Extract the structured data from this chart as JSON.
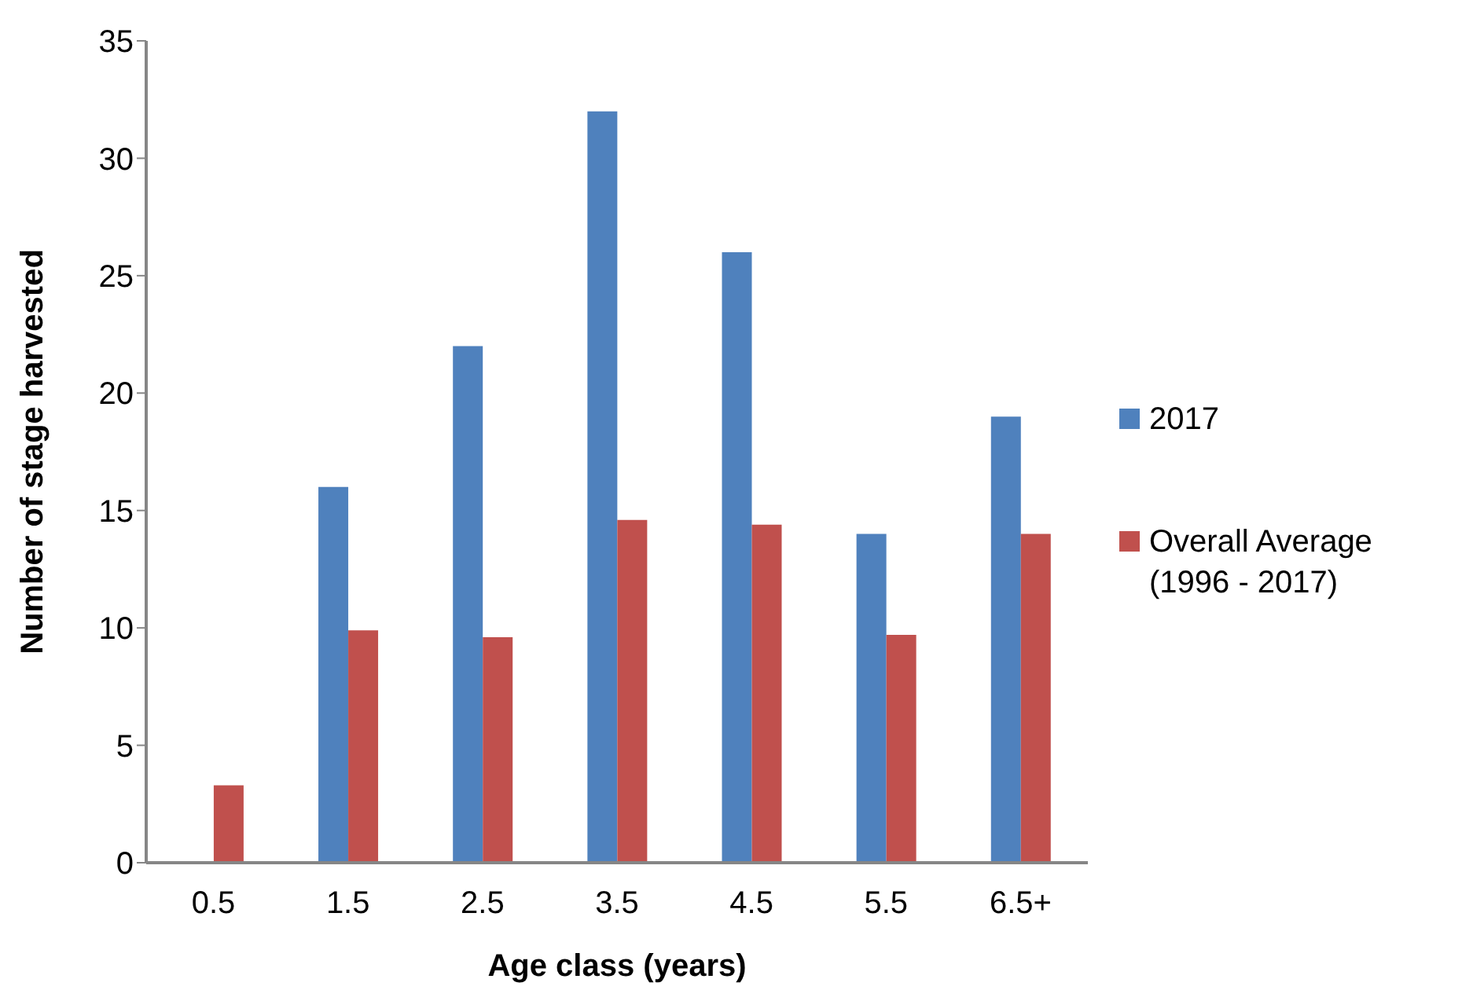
{
  "chart_data": {
    "type": "bar",
    "xlabel": "Age class (years)",
    "ylabel": "Number of stage harvested",
    "categories": [
      "0.5",
      "1.5",
      "2.5",
      "3.5",
      "4.5",
      "5.5",
      "6.5+"
    ],
    "series": [
      {
        "name": "2017",
        "color": "#4f81bd",
        "values": [
          null,
          16,
          22,
          32,
          26,
          14,
          19
        ]
      },
      {
        "name": "Overall Average (1996 - 2017)",
        "color": "#c0504d",
        "values": [
          3.3,
          9.9,
          9.6,
          14.6,
          14.4,
          9.7,
          14.0
        ]
      }
    ],
    "ylim": [
      0,
      35
    ],
    "yticks": [
      0,
      5,
      10,
      15,
      20,
      25,
      30,
      35
    ],
    "grid": false,
    "legend": "right"
  }
}
